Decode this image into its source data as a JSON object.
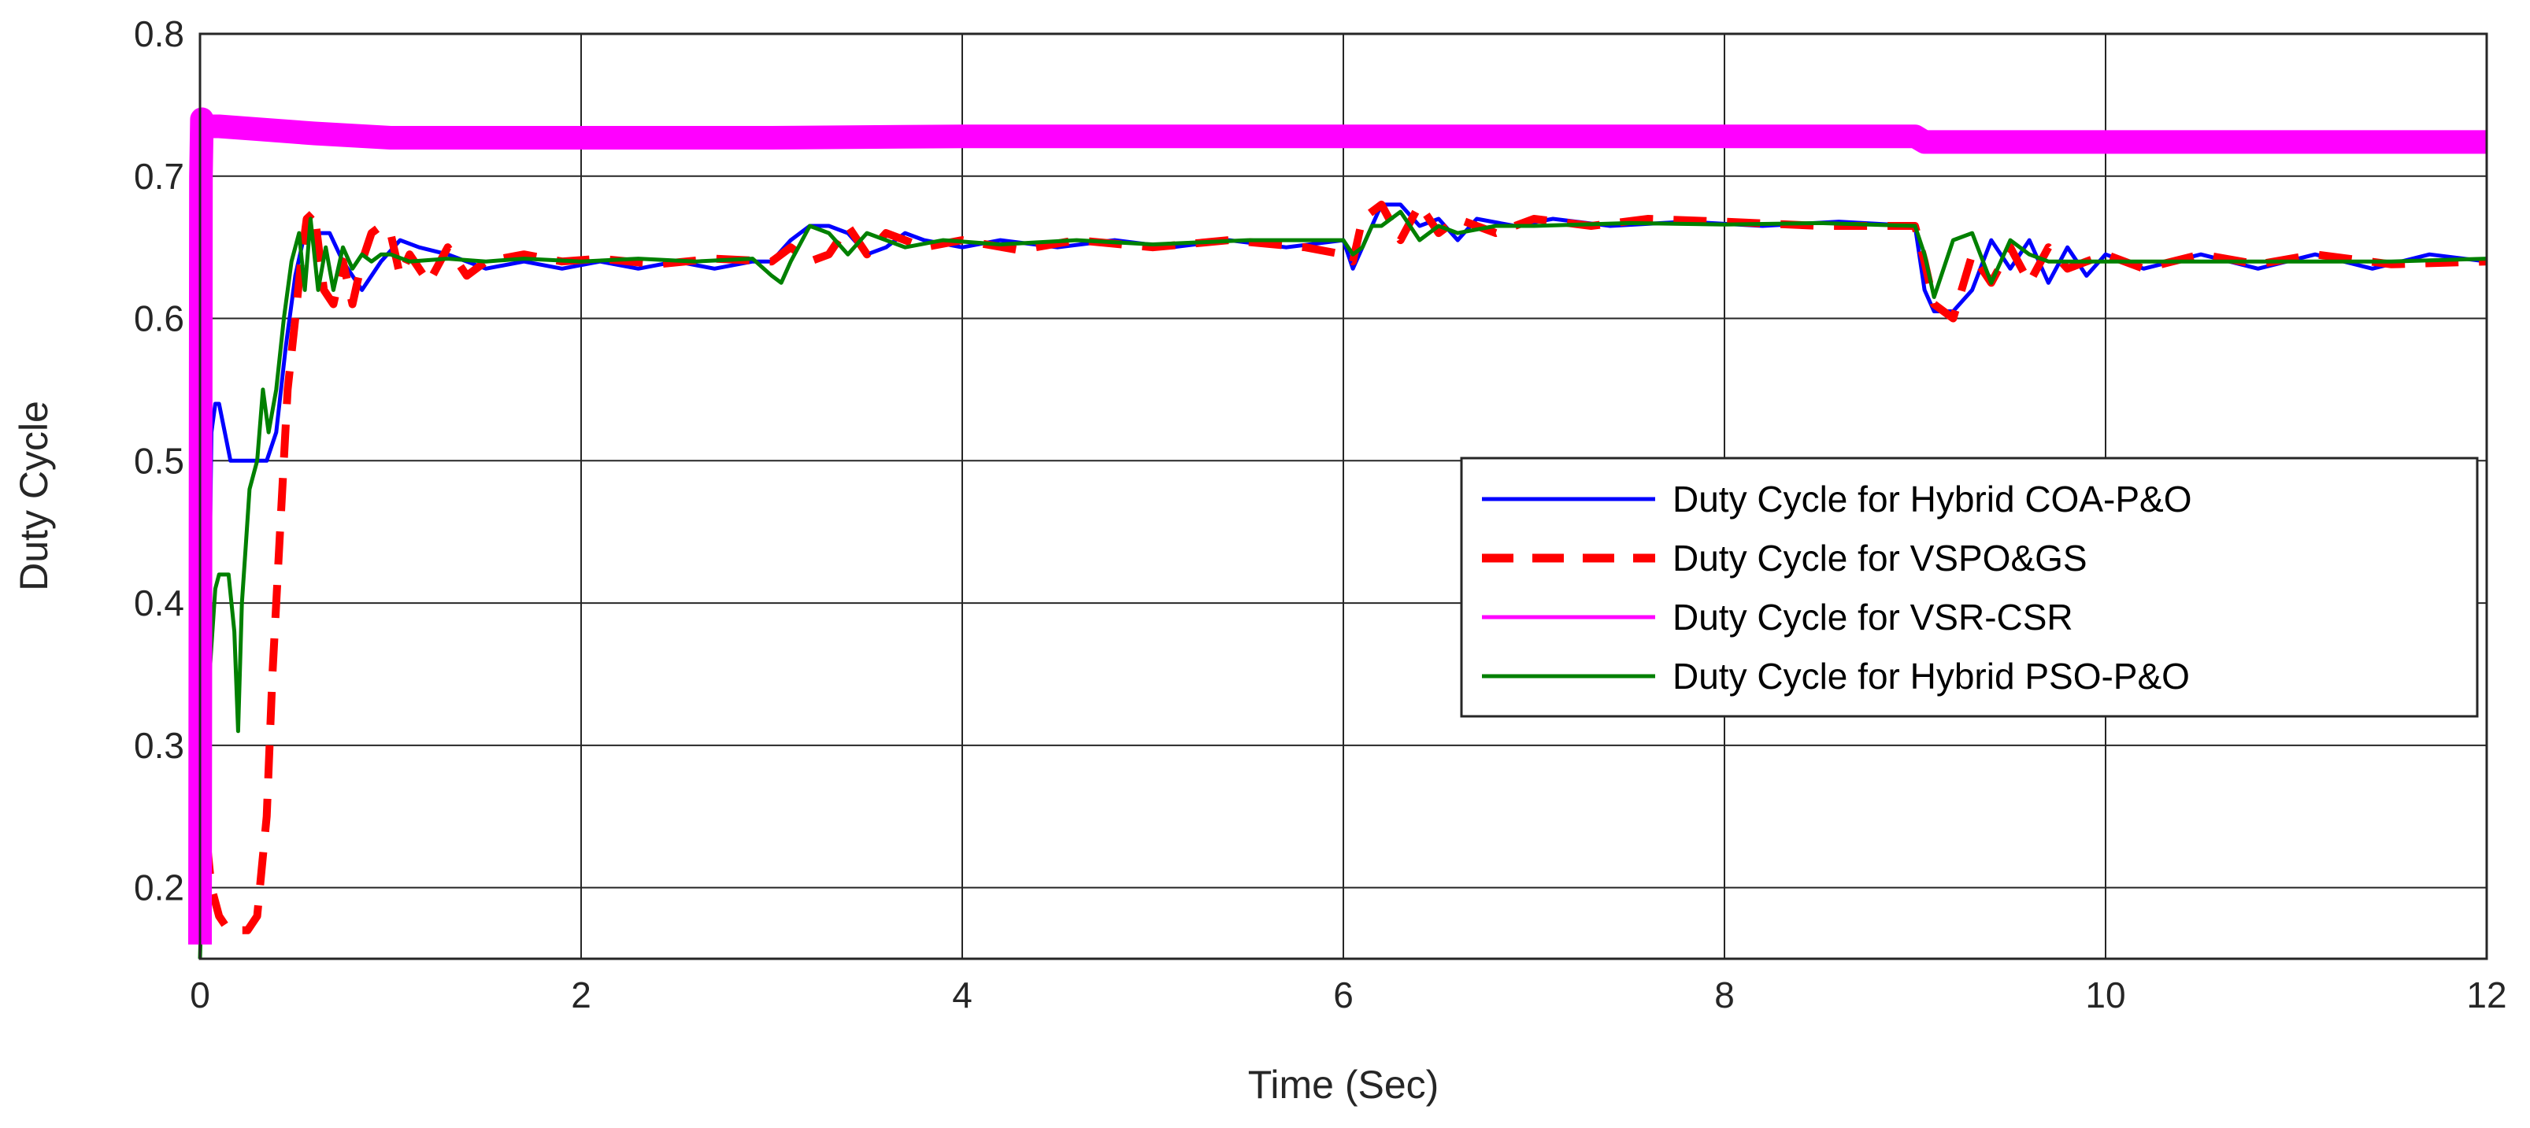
{
  "chart_data": {
    "type": "line",
    "title": "",
    "xlabel": "Time (Sec)",
    "ylabel": "Duty Cycle",
    "xlim": [
      0,
      12
    ],
    "ylim": [
      0.15,
      0.8
    ],
    "x_ticks": [
      0,
      2,
      4,
      6,
      8,
      10,
      12
    ],
    "x_tick_labels": [
      "0",
      "2",
      "4",
      "6",
      "8",
      "10",
      "12"
    ],
    "y_ticks": [
      0.2,
      0.3,
      0.4,
      0.5,
      0.6,
      0.7,
      0.8
    ],
    "y_tick_labels": [
      "0.2",
      "0.3",
      "0.4",
      "0.5",
      "0.6",
      "0.7",
      "0.8"
    ],
    "grid": true,
    "legend_position": "center-right",
    "series": [
      {
        "name": "Duty Cycle for Hybrid COA-P&O",
        "color": "#0000ff",
        "style": "solid",
        "x": [
          0,
          0.02,
          0.04,
          0.06,
          0.08,
          0.1,
          0.13,
          0.16,
          0.2,
          0.25,
          0.3,
          0.35,
          0.4,
          0.45,
          0.5,
          0.55,
          0.6,
          0.68,
          0.75,
          0.85,
          0.95,
          1.05,
          1.15,
          1.3,
          1.5,
          1.7,
          1.9,
          2.1,
          2.3,
          2.5,
          2.7,
          2.9,
          3.0,
          3.1,
          3.2,
          3.3,
          3.4,
          3.5,
          3.6,
          3.7,
          3.8,
          4.0,
          4.2,
          4.5,
          4.8,
          5.1,
          5.4,
          5.7,
          6.0,
          6.05,
          6.1,
          6.2,
          6.3,
          6.4,
          6.5,
          6.6,
          6.7,
          6.9,
          7.1,
          7.4,
          7.8,
          8.2,
          8.6,
          9.0,
          9.05,
          9.1,
          9.2,
          9.3,
          9.4,
          9.5,
          9.6,
          9.7,
          9.8,
          9.9,
          10.0,
          10.2,
          10.5,
          10.8,
          11.1,
          11.4,
          11.7,
          12.0
        ],
        "y": [
          0.16,
          0.53,
          0.33,
          0.52,
          0.54,
          0.54,
          0.52,
          0.5,
          0.5,
          0.5,
          0.5,
          0.5,
          0.52,
          0.58,
          0.63,
          0.66,
          0.66,
          0.66,
          0.64,
          0.62,
          0.64,
          0.655,
          0.65,
          0.645,
          0.635,
          0.64,
          0.635,
          0.64,
          0.635,
          0.64,
          0.635,
          0.64,
          0.64,
          0.655,
          0.665,
          0.665,
          0.66,
          0.645,
          0.65,
          0.66,
          0.655,
          0.65,
          0.655,
          0.65,
          0.655,
          0.65,
          0.655,
          0.65,
          0.655,
          0.635,
          0.65,
          0.68,
          0.68,
          0.665,
          0.67,
          0.655,
          0.67,
          0.665,
          0.67,
          0.665,
          0.668,
          0.665,
          0.668,
          0.665,
          0.62,
          0.605,
          0.605,
          0.62,
          0.655,
          0.635,
          0.655,
          0.625,
          0.65,
          0.63,
          0.645,
          0.635,
          0.645,
          0.635,
          0.645,
          0.635,
          0.645,
          0.64
        ]
      },
      {
        "name": "Duty Cycle for VSPO&GS",
        "color": "#ff0000",
        "style": "dashed",
        "x": [
          0,
          0.03,
          0.06,
          0.1,
          0.15,
          0.2,
          0.25,
          0.3,
          0.35,
          0.38,
          0.42,
          0.46,
          0.5,
          0.53,
          0.56,
          0.6,
          0.65,
          0.7,
          0.75,
          0.8,
          0.85,
          0.9,
          0.95,
          1.0,
          1.05,
          1.1,
          1.2,
          1.3,
          1.4,
          1.5,
          1.7,
          1.9,
          2.1,
          2.4,
          2.7,
          3.0,
          3.1,
          3.2,
          3.3,
          3.4,
          3.5,
          3.6,
          3.8,
          4.0,
          4.3,
          4.6,
          5.0,
          5.4,
          5.8,
          6.0,
          6.05,
          6.1,
          6.2,
          6.3,
          6.4,
          6.5,
          6.6,
          6.8,
          7.0,
          7.3,
          7.6,
          8.0,
          8.5,
          9.0,
          9.05,
          9.1,
          9.2,
          9.3,
          9.4,
          9.5,
          9.6,
          9.7,
          9.8,
          9.9,
          10.0,
          10.2,
          10.5,
          10.8,
          11.1,
          11.5,
          12.0
        ],
        "y": [
          0.27,
          0.24,
          0.2,
          0.18,
          0.17,
          0.17,
          0.17,
          0.18,
          0.25,
          0.35,
          0.45,
          0.55,
          0.6,
          0.64,
          0.67,
          0.675,
          0.62,
          0.61,
          0.64,
          0.61,
          0.64,
          0.66,
          0.665,
          0.66,
          0.63,
          0.645,
          0.625,
          0.65,
          0.63,
          0.64,
          0.645,
          0.64,
          0.642,
          0.638,
          0.642,
          0.64,
          0.65,
          0.64,
          0.645,
          0.665,
          0.645,
          0.66,
          0.65,
          0.655,
          0.648,
          0.655,
          0.65,
          0.655,
          0.65,
          0.645,
          0.64,
          0.67,
          0.68,
          0.655,
          0.68,
          0.66,
          0.67,
          0.66,
          0.67,
          0.665,
          0.67,
          0.668,
          0.665,
          0.665,
          0.64,
          0.61,
          0.6,
          0.645,
          0.625,
          0.65,
          0.625,
          0.65,
          0.635,
          0.64,
          0.645,
          0.635,
          0.645,
          0.638,
          0.645,
          0.638,
          0.64
        ]
      },
      {
        "name": "Duty Cycle for VSR-CSR",
        "color": "#ff00ff",
        "style": "solid",
        "x": [
          0,
          0.005,
          0.01,
          0.03,
          0.1,
          0.3,
          0.6,
          1.0,
          2.0,
          3.0,
          4.0,
          5.0,
          6.0,
          7.0,
          8.0,
          9.0,
          9.05,
          10.0,
          11.0,
          12.0
        ],
        "y": [
          0.16,
          0.7,
          0.74,
          0.735,
          0.735,
          0.733,
          0.73,
          0.727,
          0.727,
          0.727,
          0.728,
          0.728,
          0.728,
          0.728,
          0.728,
          0.728,
          0.724,
          0.724,
          0.724,
          0.724
        ]
      },
      {
        "name": "Duty Cycle for Hybrid PSO-P&O",
        "color": "#008000",
        "style": "solid",
        "x": [
          0,
          0.02,
          0.05,
          0.08,
          0.1,
          0.12,
          0.15,
          0.18,
          0.2,
          0.22,
          0.24,
          0.26,
          0.3,
          0.33,
          0.36,
          0.4,
          0.44,
          0.48,
          0.52,
          0.55,
          0.58,
          0.62,
          0.66,
          0.7,
          0.75,
          0.8,
          0.85,
          0.9,
          0.95,
          1.0,
          1.1,
          1.3,
          1.5,
          1.7,
          2.0,
          2.3,
          2.6,
          2.9,
          3.0,
          3.05,
          3.1,
          3.2,
          3.3,
          3.4,
          3.5,
          3.6,
          3.7,
          3.9,
          4.2,
          4.6,
          5.0,
          5.5,
          6.0,
          6.05,
          6.1,
          6.15,
          6.2,
          6.3,
          6.4,
          6.5,
          6.6,
          6.8,
          7.0,
          7.5,
          8.0,
          8.5,
          9.0,
          9.05,
          9.1,
          9.2,
          9.3,
          9.4,
          9.5,
          9.6,
          9.7,
          9.8,
          10.0,
          10.5,
          11.0,
          11.5,
          12.0
        ],
        "y": [
          0.15,
          0.25,
          0.35,
          0.41,
          0.42,
          0.42,
          0.42,
          0.38,
          0.31,
          0.4,
          0.44,
          0.48,
          0.5,
          0.55,
          0.52,
          0.55,
          0.6,
          0.64,
          0.66,
          0.62,
          0.67,
          0.62,
          0.65,
          0.62,
          0.65,
          0.635,
          0.645,
          0.64,
          0.645,
          0.645,
          0.64,
          0.642,
          0.64,
          0.642,
          0.64,
          0.642,
          0.64,
          0.642,
          0.63,
          0.625,
          0.64,
          0.665,
          0.66,
          0.645,
          0.66,
          0.655,
          0.65,
          0.655,
          0.652,
          0.655,
          0.652,
          0.655,
          0.655,
          0.645,
          0.65,
          0.665,
          0.665,
          0.675,
          0.655,
          0.665,
          0.66,
          0.665,
          0.665,
          0.667,
          0.666,
          0.667,
          0.665,
          0.645,
          0.615,
          0.655,
          0.66,
          0.625,
          0.655,
          0.645,
          0.64,
          0.64,
          0.64,
          0.64,
          0.64,
          0.64,
          0.642
        ]
      }
    ]
  }
}
